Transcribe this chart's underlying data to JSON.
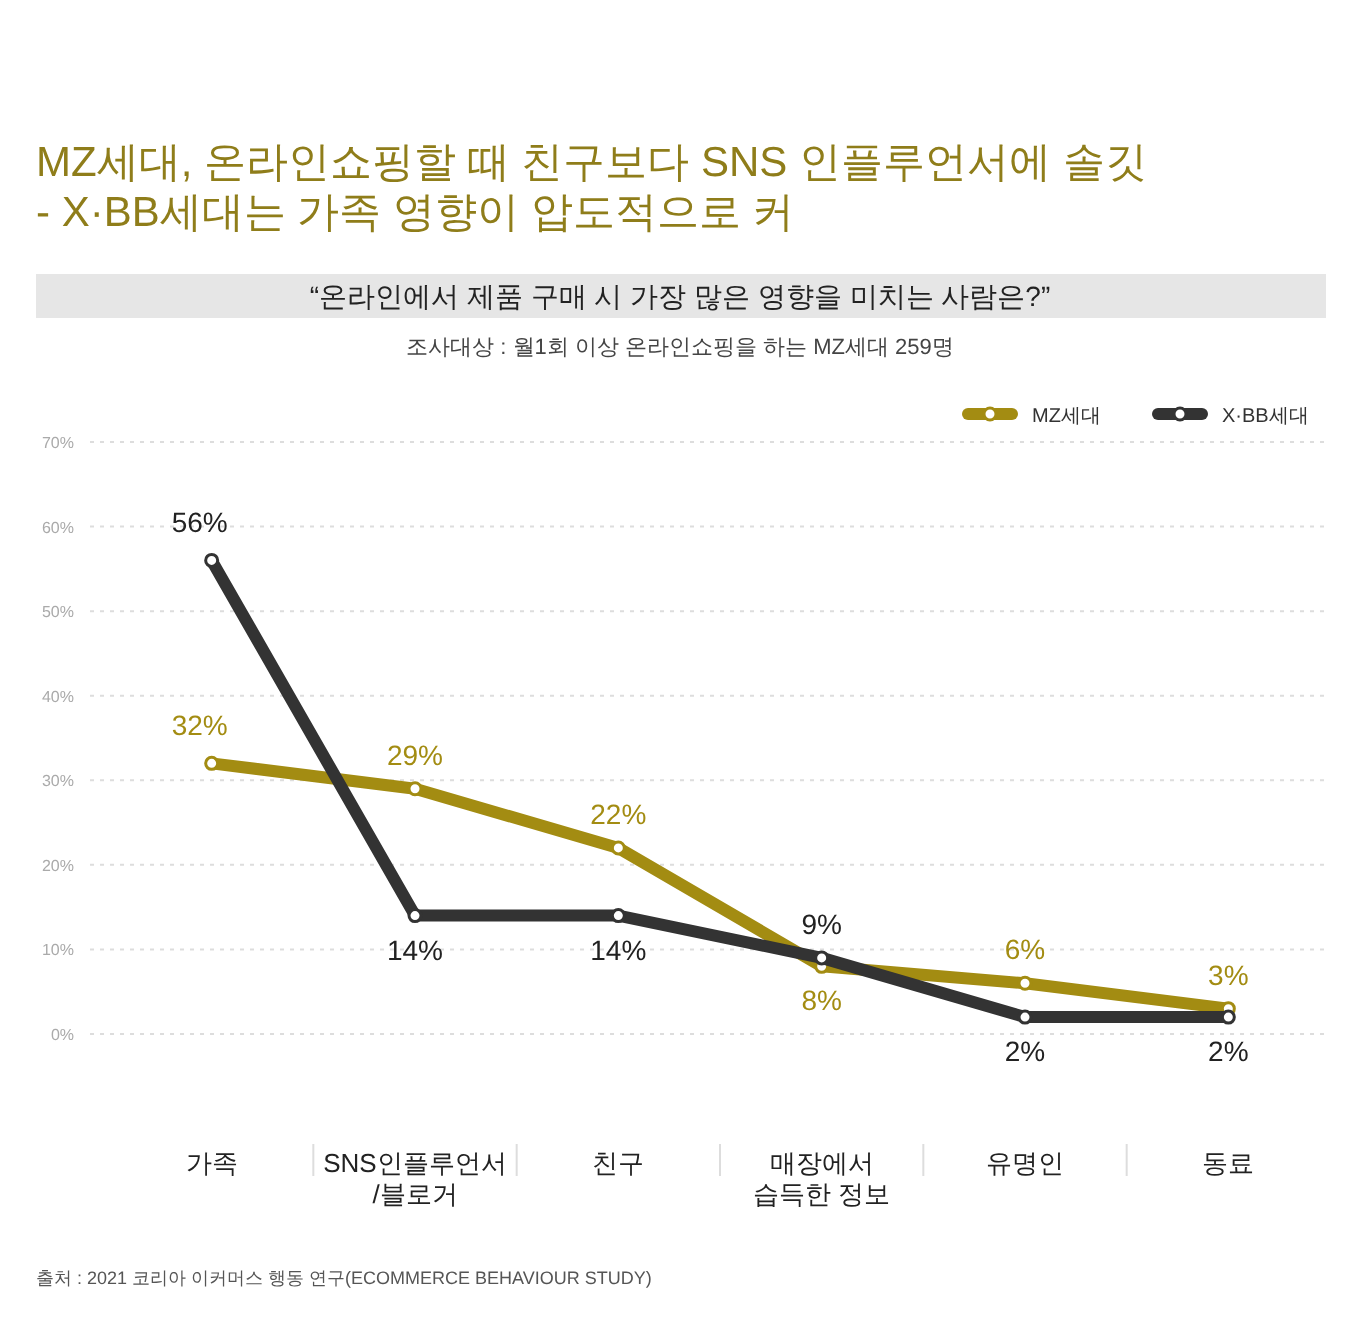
{
  "chart_data": {
    "type": "line",
    "title": "MZ세대, 온라인쇼핑할 때 친구보다 SNS 인플루언서에 솔깃\n- X·BB세대는 가족 영향이 압도적으로 커",
    "subtitle": "“온라인에서 제품 구매 시 가장 많은 영향을 미치는 사람은?”",
    "annotations": [
      "조사대상 : 월1회 이상 온라인쇼핑을 하는 MZ세대 259명",
      "출처 : 2021 코리아 이커머스 행동 연구(ECOMMERCE BEHAVIOUR STUDY)"
    ],
    "categories": [
      "가족",
      "SNS인플루언서\n/블로거",
      "친구",
      "매장에서\n습득한 정보",
      "유명인",
      "동료"
    ],
    "series": [
      {
        "name": "MZ세대",
        "color": "#a38c12",
        "values": [
          32,
          29,
          22,
          8,
          6,
          3
        ],
        "value_labels": [
          "32%",
          "29%",
          "22%",
          "8%",
          "6%",
          "3%"
        ]
      },
      {
        "name": "X·BB세대",
        "color": "#333333",
        "values": [
          56,
          14,
          14,
          9,
          2,
          2
        ],
        "value_labels": [
          "56%",
          "14%",
          "14%",
          "9%",
          "2%",
          "2%"
        ]
      }
    ],
    "ylim": [
      0,
      70
    ],
    "yticks": [
      {
        "value": 0,
        "label": "0%"
      },
      {
        "value": 10,
        "label": "10%"
      },
      {
        "value": 20,
        "label": "20%"
      },
      {
        "value": 30,
        "label": "30%"
      },
      {
        "value": 40,
        "label": "40%"
      },
      {
        "value": 50,
        "label": "50%"
      },
      {
        "value": 60,
        "label": "60%"
      },
      {
        "value": 70,
        "label": "70%"
      }
    ],
    "grid": "y",
    "legend": "top right",
    "marker": "circle",
    "line_style": "solid"
  }
}
